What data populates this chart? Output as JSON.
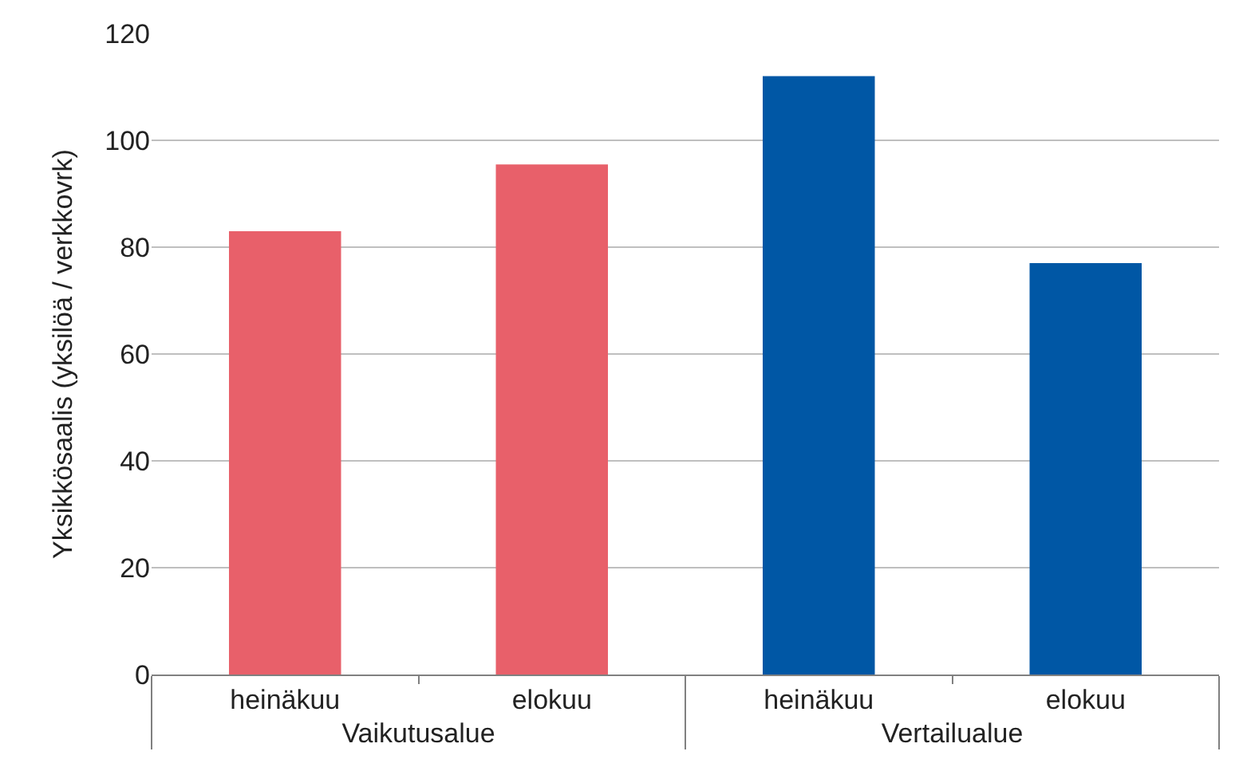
{
  "chart_data": {
    "type": "bar",
    "ylabel": "Yksikkösaalis (yksilöä / verkkovrk)",
    "categories": [
      "heinäkuu",
      "elokuu",
      "heinäkuu",
      "elokuu"
    ],
    "values": [
      83,
      95.5,
      112,
      77
    ],
    "colors": [
      "#e8606a",
      "#e8606a",
      "#0057a5",
      "#0057a5"
    ],
    "annotations": [
      "Vaikutusalue",
      "Vertailualue"
    ],
    "ylim": [
      0,
      120
    ],
    "yticks": [
      0,
      20,
      40,
      60,
      80,
      100,
      120
    ],
    "grid": "y"
  }
}
